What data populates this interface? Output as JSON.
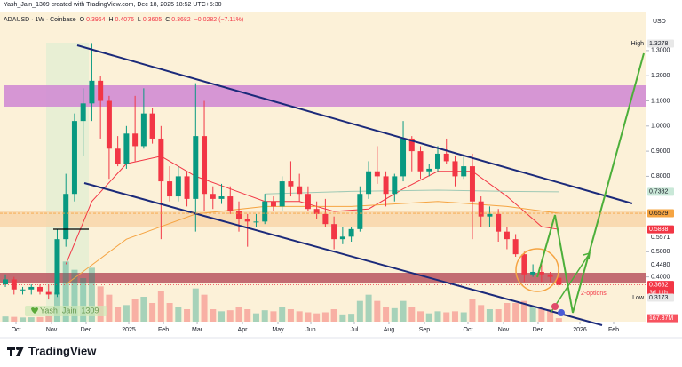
{
  "header": {
    "author_line": "Yash_Jain_1309 created with TradingView.com, Dec 18, 2025 18:52 UTC+5:30",
    "symbol": "ADAUSD · 1W · Coinbase",
    "o_tag": "O",
    "o": "0.3964",
    "h_tag": "H",
    "h": "0.4076",
    "l_tag": "L",
    "l": "0.3605",
    "c_tag": "C",
    "c": "0.3682",
    "change": "−0.0282 (−7.11%)"
  },
  "watermark": "Yash_Jain_1309",
  "annotation": "2-options",
  "footer": "TradingView",
  "chart_data": {
    "type": "candlestick",
    "currency": "USD",
    "up_color": "#089981",
    "down_color": "#f23645",
    "x": [
      0,
      1,
      2,
      3,
      4,
      5,
      6,
      7,
      8,
      9,
      10,
      11,
      12,
      13,
      14,
      15,
      16,
      17,
      18,
      19,
      20,
      21,
      22,
      23,
      24,
      25,
      26,
      27,
      28,
      29,
      30,
      31,
      32,
      33,
      34,
      35,
      36,
      37,
      38,
      39,
      40,
      41,
      42,
      43,
      44,
      45,
      46,
      47,
      48,
      49,
      50,
      51,
      52,
      53,
      54,
      55,
      56,
      57,
      58,
      59,
      60,
      61,
      62,
      63,
      64
    ],
    "open": [
      0.37,
      0.39,
      0.35,
      0.35,
      0.36,
      0.34,
      0.33,
      0.55,
      0.73,
      1.02,
      1.09,
      1.18,
      1.1,
      0.91,
      0.85,
      0.97,
      0.92,
      1.05,
      0.95,
      0.78,
      0.72,
      0.8,
      0.71,
      0.96,
      0.73,
      0.71,
      0.72,
      0.66,
      0.63,
      0.62,
      0.62,
      0.7,
      0.68,
      0.78,
      0.76,
      0.73,
      0.67,
      0.65,
      0.61,
      0.55,
      0.56,
      0.59,
      0.73,
      0.82,
      0.8,
      0.73,
      0.8,
      0.95,
      0.9,
      0.82,
      0.83,
      0.89,
      0.86,
      0.8,
      0.84,
      0.7,
      0.64,
      0.65,
      0.58,
      0.55,
      0.49,
      0.41,
      0.42,
      0.41,
      0.3964
    ],
    "high": [
      0.41,
      0.4,
      0.36,
      0.37,
      0.37,
      0.37,
      0.59,
      0.81,
      1.05,
      1.15,
      1.33,
      1.2,
      1.12,
      0.96,
      1.0,
      1.12,
      1.15,
      1.07,
      1.0,
      0.84,
      0.84,
      0.82,
      1.17,
      1.1,
      0.76,
      0.77,
      0.76,
      0.7,
      0.65,
      0.65,
      0.73,
      0.72,
      0.8,
      0.86,
      0.81,
      0.76,
      0.7,
      0.71,
      0.64,
      0.6,
      0.6,
      0.76,
      0.86,
      0.92,
      0.82,
      0.81,
      1.02,
      0.96,
      0.92,
      0.85,
      0.92,
      0.95,
      0.88,
      0.88,
      0.89,
      0.72,
      0.68,
      0.67,
      0.6,
      0.57,
      0.5,
      0.45,
      0.45,
      0.42,
      0.4076
    ],
    "low": [
      0.36,
      0.33,
      0.33,
      0.33,
      0.33,
      0.31,
      0.32,
      0.52,
      0.7,
      0.88,
      1.02,
      0.95,
      0.79,
      0.84,
      0.83,
      0.86,
      0.91,
      0.93,
      0.55,
      0.7,
      0.7,
      0.68,
      0.58,
      0.66,
      0.67,
      0.69,
      0.65,
      0.58,
      0.52,
      0.6,
      0.61,
      0.66,
      0.66,
      0.72,
      0.7,
      0.66,
      0.63,
      0.6,
      0.51,
      0.53,
      0.54,
      0.58,
      0.71,
      0.77,
      0.68,
      0.7,
      0.78,
      0.82,
      0.79,
      0.8,
      0.82,
      0.85,
      0.76,
      0.79,
      0.55,
      0.6,
      0.6,
      0.54,
      0.51,
      0.48,
      0.38,
      0.4,
      0.38,
      0.38,
      0.3605
    ],
    "close": [
      0.39,
      0.35,
      0.35,
      0.36,
      0.34,
      0.33,
      0.55,
      0.73,
      1.02,
      1.09,
      1.18,
      1.1,
      0.91,
      0.85,
      0.97,
      0.92,
      1.05,
      0.95,
      0.78,
      0.72,
      0.8,
      0.71,
      0.96,
      0.73,
      0.71,
      0.72,
      0.66,
      0.63,
      0.62,
      0.62,
      0.7,
      0.68,
      0.78,
      0.76,
      0.73,
      0.67,
      0.65,
      0.61,
      0.55,
      0.56,
      0.59,
      0.73,
      0.82,
      0.8,
      0.73,
      0.8,
      0.95,
      0.9,
      0.82,
      0.83,
      0.89,
      0.86,
      0.8,
      0.84,
      0.7,
      0.64,
      0.65,
      0.58,
      0.55,
      0.49,
      0.41,
      0.42,
      0.41,
      0.4,
      0.3682
    ],
    "volume": [
      250,
      230,
      200,
      210,
      220,
      260,
      1400,
      2900,
      2500,
      2100,
      2600,
      1700,
      1300,
      700,
      800,
      1100,
      1200,
      900,
      1500,
      900,
      700,
      600,
      1600,
      1300,
      600,
      500,
      550,
      700,
      600,
      400,
      550,
      500,
      700,
      600,
      500,
      450,
      400,
      450,
      600,
      350,
      380,
      1000,
      1300,
      1000,
      700,
      650,
      1000,
      700,
      500,
      400,
      500,
      450,
      500,
      450,
      1100,
      800,
      600,
      600,
      900,
      900,
      1000,
      700,
      650,
      600,
      167.37
    ],
    "vlim": [
      0,
      3000
    ],
    "overlays": [
      {
        "color": "#f23645",
        "x": [
          7,
          10,
          14,
          18,
          22,
          26,
          30,
          34,
          38,
          42,
          46,
          50,
          54,
          58,
          62,
          64
        ],
        "values": [
          0.45,
          0.7,
          0.85,
          0.88,
          0.8,
          0.75,
          0.7,
          0.7,
          0.66,
          0.67,
          0.75,
          0.82,
          0.82,
          0.72,
          0.6,
          0.5888
        ]
      },
      {
        "color": "#f5a442",
        "x": [
          7,
          14,
          22,
          30,
          40,
          50,
          58,
          64
        ],
        "values": [
          0.37,
          0.55,
          0.65,
          0.68,
          0.68,
          0.7,
          0.68,
          0.6529
        ]
      },
      {
        "color": "#9fc9b5",
        "x": [
          30,
          40,
          50,
          58,
          64
        ],
        "values": [
          0.73,
          0.74,
          0.745,
          0.74,
          0.7382
        ]
      }
    ],
    "xlim": [
      -0.62,
      74.13
    ],
    "xticks": [
      {
        "value": 1.23,
        "label": "Oct"
      },
      {
        "value": 5.34,
        "label": "Nov"
      },
      {
        "value": 9.34,
        "label": "Dec"
      },
      {
        "value": 14.27,
        "label": "2025"
      },
      {
        "value": 18.28,
        "label": "Feb"
      },
      {
        "value": 22.18,
        "label": "Mar"
      },
      {
        "value": 27.41,
        "label": "Apr"
      },
      {
        "value": 31.52,
        "label": "May"
      },
      {
        "value": 35.32,
        "label": "Jun"
      },
      {
        "value": 40.35,
        "label": "Jul"
      },
      {
        "value": 44.35,
        "label": "Aug"
      },
      {
        "value": 48.46,
        "label": "Sep"
      },
      {
        "value": 53.49,
        "label": "Oct"
      },
      {
        "value": 57.6,
        "label": "Nov"
      },
      {
        "value": 61.6,
        "label": "Dec"
      },
      {
        "value": 66.43,
        "label": "2026"
      },
      {
        "value": 70.33,
        "label": "Feb"
      }
    ],
    "ylim": [
      0.222,
      1.395
    ],
    "yticks": [
      {
        "value": 1.3,
        "label": "1.3000"
      },
      {
        "value": 1.2,
        "label": "1.2000"
      },
      {
        "value": 1.1,
        "label": "1.1000"
      },
      {
        "value": 1.0,
        "label": "1.0000"
      },
      {
        "value": 0.9,
        "label": "0.9000"
      },
      {
        "value": 0.8,
        "label": "0.8000"
      },
      {
        "value": 0.5,
        "label": "0.5000"
      },
      {
        "value": 0.4,
        "label": "0.4000"
      }
    ],
    "levels": [
      {
        "value": 0.5571,
        "label": "0.5571"
      },
      {
        "value": 0.448,
        "label": "0.4480"
      }
    ],
    "price_labels": [
      {
        "value": 1.3278,
        "label": "1.3278",
        "tag": "High",
        "bg": "#e8e8e8",
        "fg": "#131722"
      },
      {
        "value": 0.7382,
        "label": "0.7382",
        "bg": "#c9e8d8",
        "fg": "#131722"
      },
      {
        "value": 0.6529,
        "label": "0.6529",
        "bg": "#f5a442",
        "fg": "#131722"
      },
      {
        "value": 0.5888,
        "label": "0.5888",
        "bg": "#f23645",
        "fg": "#ffffff"
      },
      {
        "value": 0.3682,
        "label": "0.3682",
        "sub": "3d 11h",
        "bg": "#f23645",
        "fg": "#ffffff"
      },
      {
        "value": 0.3173,
        "label": "0.3173",
        "tag": "Low",
        "bg": "#e8e8e8",
        "fg": "#131722"
      }
    ],
    "volume_label": "167.37M"
  }
}
